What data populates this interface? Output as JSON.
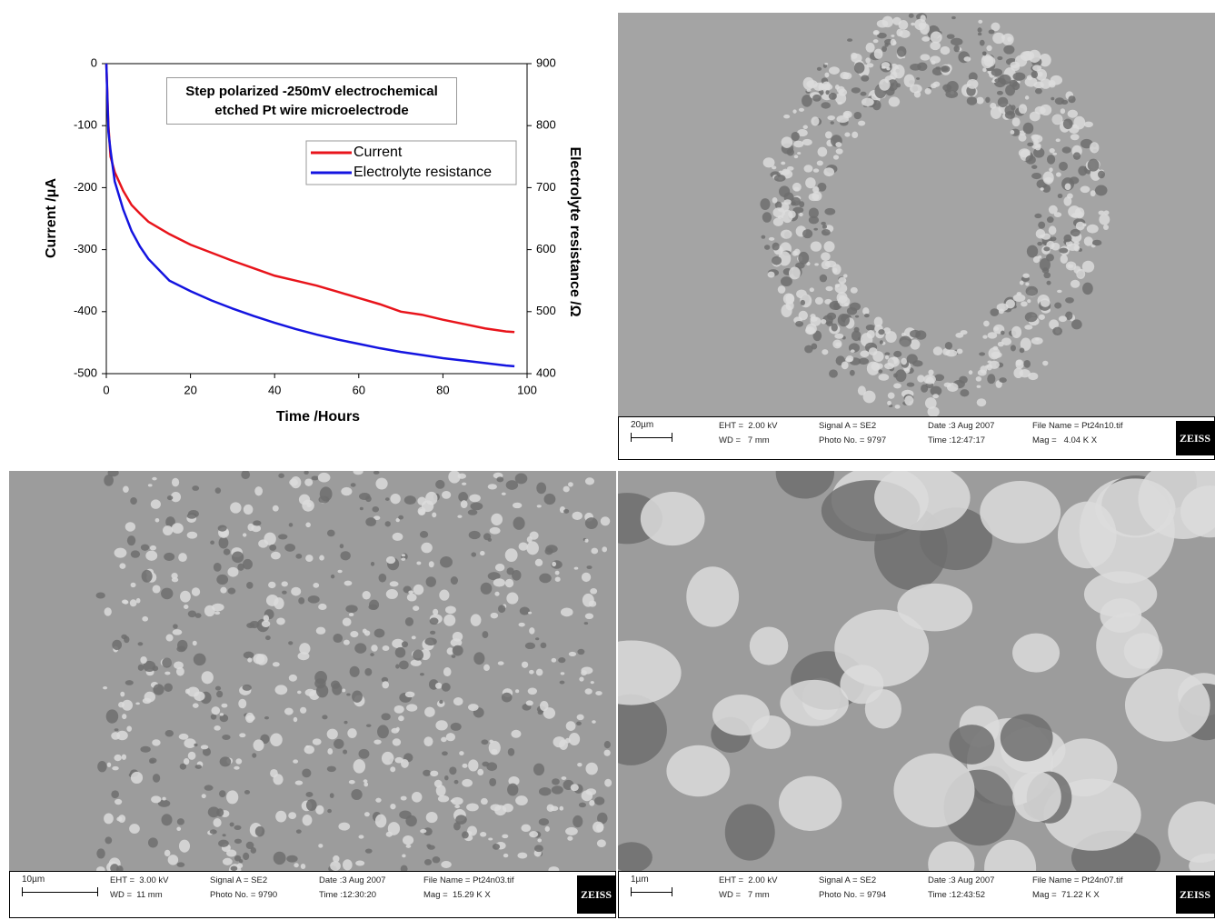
{
  "chart_data": {
    "type": "line",
    "title": "Step polarized -250mV electrochemical etched Pt wire microelectrode",
    "xlabel": "Time /Hours",
    "ylabel": "Current /μA",
    "y2label": "Electrolyte resistance /Ω",
    "x": [
      0,
      0.5,
      1,
      2,
      4,
      6,
      8,
      10,
      15,
      20,
      25,
      30,
      35,
      40,
      45,
      50,
      55,
      60,
      65,
      70,
      75,
      80,
      85,
      90,
      95,
      97
    ],
    "series": [
      {
        "name": "Current",
        "color": "#e8141b",
        "axis": "y",
        "values": [
          0,
          -100,
          -150,
          -175,
          -205,
          -228,
          -242,
          -255,
          -275,
          -292,
          -305,
          -318,
          -330,
          -342,
          -350,
          -358,
          -368,
          -378,
          -388,
          -400,
          -405,
          -413,
          -420,
          -427,
          -432,
          -433
        ]
      },
      {
        "name": "Electrolyte resistance",
        "color": "#1414e0",
        "axis": "y2",
        "values": [
          900,
          790,
          760,
          710,
          665,
          630,
          605,
          585,
          550,
          533,
          518,
          505,
          493,
          482,
          472,
          463,
          455,
          448,
          441,
          435,
          430,
          425,
          421,
          417,
          413,
          412
        ]
      }
    ],
    "xlim": [
      0,
      100
    ],
    "xticks": [
      0,
      20,
      40,
      60,
      80,
      100
    ],
    "ylim": [
      -500,
      0
    ],
    "yticks": [
      -500,
      -400,
      -300,
      -200,
      -100,
      0
    ],
    "y2lim": [
      400,
      900
    ],
    "y2ticks": [
      400,
      500,
      600,
      700,
      800,
      900
    ],
    "legend": "upper right",
    "grid": false
  },
  "panels": [
    {
      "scale": "20µm",
      "eht": "EHT =  2.00 kV",
      "wd": "WD =   7 mm",
      "signal": "Signal A = SE2",
      "photo": "Photo No. = 9797",
      "date": "Date :3 Aug 2007",
      "time": "Time :12:47:17",
      "file": "File Name = Pt24n10.tif",
      "mag": "Mag =   4.04 K X",
      "logo": "ZEISS"
    },
    {
      "scale": "10µm",
      "eht": "EHT =  3.00 kV",
      "wd": "WD =  11 mm",
      "signal": "Signal A = SE2",
      "photo": "Photo No. = 9790",
      "date": "Date :3 Aug 2007",
      "time": "Time :12:30:20",
      "file": "File Name = Pt24n03.tif",
      "mag": "Mag =  15.29 K X",
      "logo": "ZEISS"
    },
    {
      "scale": "1µm",
      "eht": "EHT =  2.00 kV",
      "wd": "WD =   7 mm",
      "signal": "Signal A = SE2",
      "photo": "Photo No. = 9794",
      "date": "Date :3 Aug 2007",
      "time": "Time :12:43:52",
      "file": "File Name = Pt24n07.tif",
      "mag": "Mag =  71.22 K X",
      "logo": "ZEISS"
    }
  ]
}
